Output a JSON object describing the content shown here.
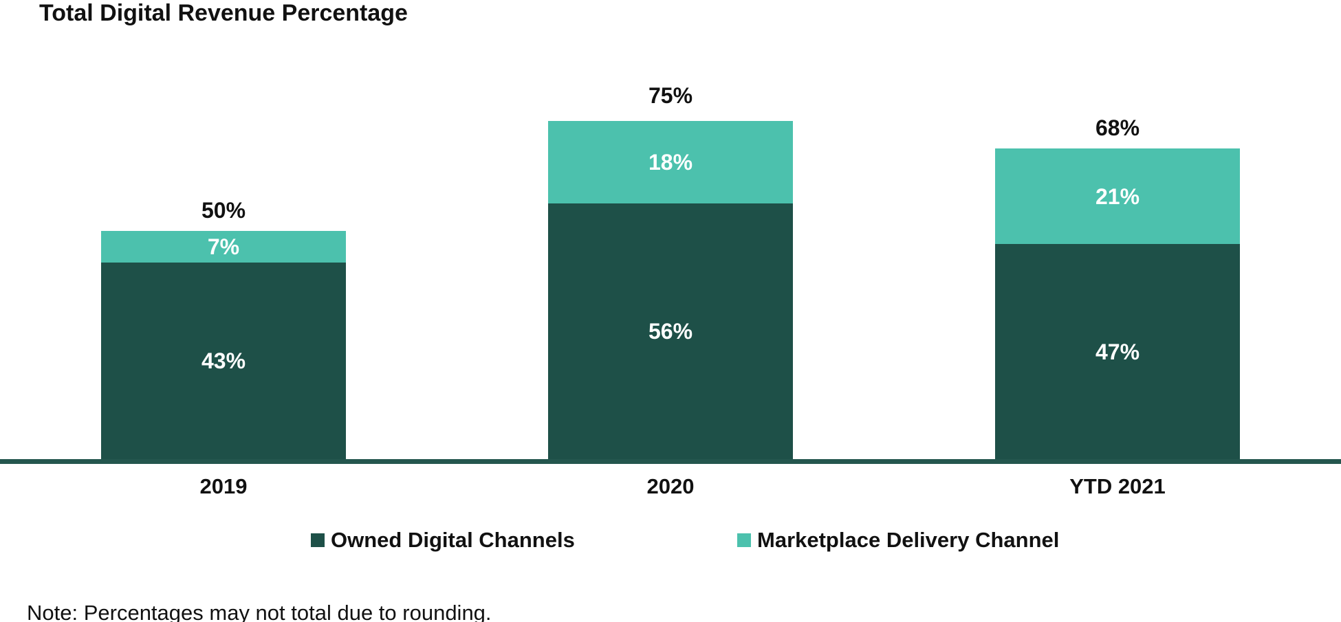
{
  "title": "Total Digital Revenue Percentage",
  "note": "Note: Percentages may not total due to rounding.",
  "colors": {
    "owned_dark_teal": "#1E5048",
    "marketplace_light_teal": "#4CC1AD",
    "axis_line": "#24564E",
    "text": "#111111",
    "label_on_bar": "#FFFFFF",
    "background": "#FFFFFF"
  },
  "legend": {
    "items": [
      {
        "label": "Owned Digital Channels",
        "color": "#1E5048"
      },
      {
        "label": "Marketplace Delivery Channel",
        "color": "#4CC1AD"
      }
    ]
  },
  "chart_data": {
    "type": "bar",
    "stacked": true,
    "title": "Total Digital Revenue Percentage",
    "categories": [
      "2019",
      "2020",
      "YTD 2021"
    ],
    "series": [
      {
        "name": "Owned Digital Channels",
        "color": "#1E5048",
        "values": [
          43,
          56,
          47
        ],
        "labels": [
          "43%",
          "56%",
          "47%"
        ]
      },
      {
        "name": "Marketplace Delivery Channel",
        "color": "#4CC1AD",
        "values": [
          7,
          18,
          21
        ],
        "labels": [
          "7%",
          "18%",
          "21%"
        ]
      }
    ],
    "totals": [
      50,
      75,
      68
    ],
    "total_labels": [
      "50%",
      "75%",
      "68%"
    ],
    "unit": "%",
    "ylim": [
      0,
      100
    ],
    "grid": false,
    "y_axis_visible": false,
    "legend_position": "bottom",
    "footnote": "Note: Percentages may not total due to rounding."
  }
}
